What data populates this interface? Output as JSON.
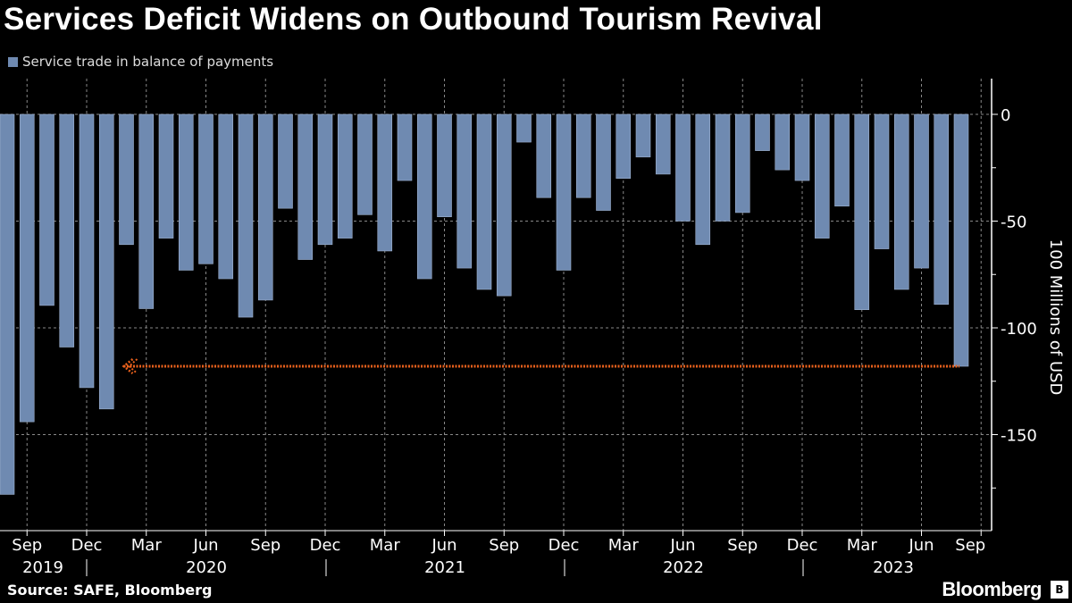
{
  "header": {
    "title": "Services Deficit Widens on Outbound Tourism Revival"
  },
  "footer": {
    "source": "Source: SAFE, Bloomberg",
    "logo": "Bloomberg"
  },
  "chart_data": {
    "type": "bar",
    "title": "Services Deficit Widens on Outbound Tourism Revival",
    "legend": {
      "position": "top-left",
      "entries": [
        "Service trade in balance of payments"
      ]
    },
    "ylabel": "100 Millions of USD",
    "yaxis_side": "right",
    "ylim": [
      -190,
      18
    ],
    "yticks": [
      0,
      -50,
      -100,
      -150
    ],
    "ytick_labels": [
      "0",
      "-50",
      "-100",
      "-150"
    ],
    "grid": true,
    "colors": {
      "bars": "#6f8ab1",
      "annotation_arrow": "#e8601c",
      "background": "#000000"
    },
    "xtick_labels": [
      "Sep",
      "Dec",
      "Mar",
      "Jun",
      "Sep",
      "Dec",
      "Mar",
      "Jun",
      "Sep",
      "Dec",
      "Mar",
      "Jun",
      "Sep",
      "Dec",
      "Mar",
      "Jun",
      "Sep"
    ],
    "year_labels": [
      "2019",
      "2020",
      "2021",
      "2022",
      "2023"
    ],
    "categories": [
      "2019-09",
      "2019-10",
      "2019-11",
      "2019-12",
      "2020-01",
      "2020-02",
      "2020-03",
      "2020-04",
      "2020-05",
      "2020-06",
      "2020-07",
      "2020-08",
      "2020-09",
      "2020-10",
      "2020-11",
      "2020-12",
      "2021-01",
      "2021-02",
      "2021-03",
      "2021-04",
      "2021-05",
      "2021-06",
      "2021-07",
      "2021-08",
      "2021-09",
      "2021-10",
      "2021-11",
      "2021-12",
      "2022-01",
      "2022-02",
      "2022-03",
      "2022-04",
      "2022-05",
      "2022-06",
      "2022-07",
      "2022-08",
      "2022-09",
      "2022-10",
      "2022-11",
      "2022-12",
      "2023-01",
      "2023-02",
      "2023-03",
      "2023-04",
      "2023-05",
      "2023-06",
      "2023-07",
      "2023-08",
      "2023-09"
    ],
    "series": [
      {
        "name": "Service trade in balance of payments",
        "values": [
          -178,
          -144,
          -89.5,
          -109,
          -128,
          -138,
          -61,
          -91,
          -58,
          -73,
          -70,
          -77,
          -95,
          -87,
          -44,
          -68,
          -61,
          -58,
          -47,
          -64,
          -31,
          -77,
          -48,
          -72,
          -82,
          -85,
          -13,
          -39,
          -73,
          -39,
          -45,
          -30,
          -20,
          -28,
          -50,
          -61,
          -50,
          -46,
          -17,
          -26,
          -31,
          -58,
          -43,
          -91.5,
          -63,
          -82,
          -72,
          -89,
          -118
        ]
      }
    ],
    "annotations": [
      {
        "type": "arrow",
        "from": "2023-09",
        "to": "2020-02",
        "y": -118,
        "style": "dotted"
      }
    ]
  }
}
